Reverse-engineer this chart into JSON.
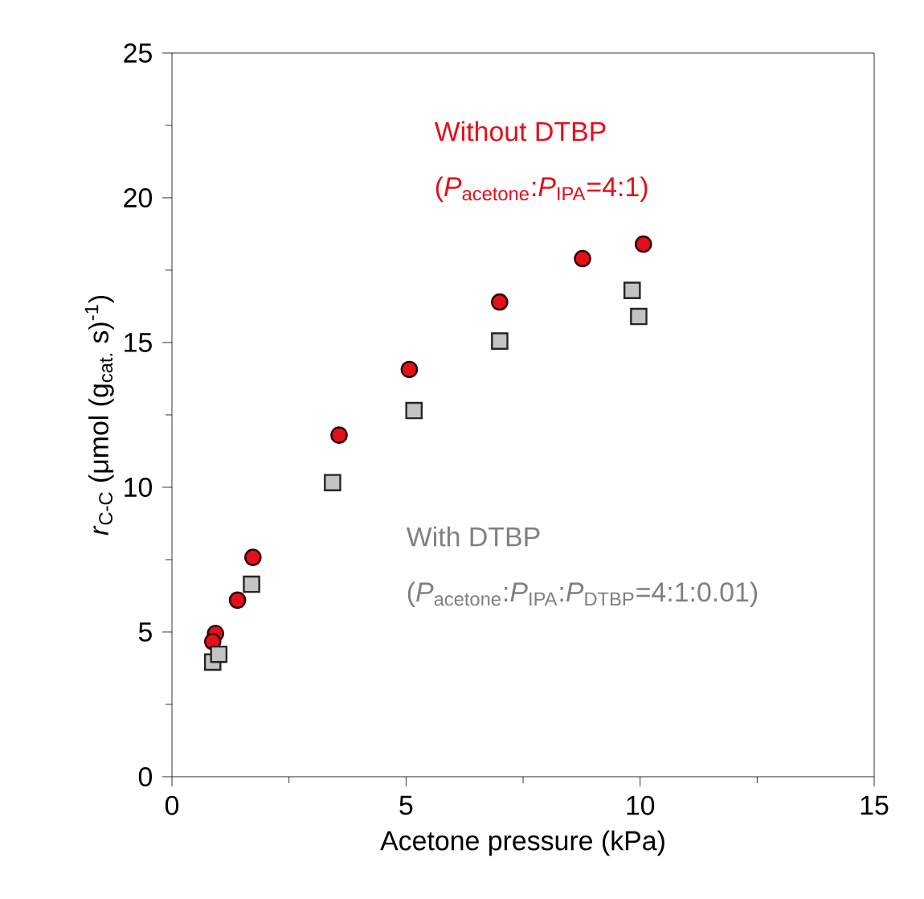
{
  "chart_data": {
    "type": "scatter",
    "xlabel": "Acetone pressure (kPa)",
    "ylabel": "*r*$_{C-C}$ (μmol (g$_{cat.}$ s)$^{-1}$)",
    "xlim": [
      0,
      15
    ],
    "xticks": [
      0,
      5,
      10,
      15
    ],
    "ylim": [
      0,
      25
    ],
    "yticks": [
      0,
      5,
      10,
      15,
      20,
      25
    ],
    "series": [
      {
        "color": "#e3101a",
        "marker": "circle",
        "x": [
          0.93,
          0.87,
          1.4,
          1.73,
          3.57,
          5.07,
          7.0,
          8.77,
          10.07
        ],
        "values": [
          4.95,
          4.67,
          6.1,
          7.58,
          11.8,
          14.07,
          16.4,
          17.9,
          18.4
        ]
      },
      {
        "color": "#c3c3c3",
        "marker": "square",
        "x": [
          0.87,
          1.0,
          1.7,
          3.43,
          5.17,
          7.0,
          9.83,
          9.97
        ],
        "values": [
          3.96,
          4.23,
          6.65,
          10.16,
          12.65,
          15.05,
          16.8,
          15.9
        ]
      }
    ],
    "annotations": [
      "Without DTBP",
      "(*P*$_{acetone}$:*P*$_{IPA}$=4:1)",
      "With DTBP",
      "(*P*$_{acetone}$:*P*$_{IPA}$:*P*$_{DTBP}$=4:1:0.01)"
    ],
    "grid": false
  }
}
